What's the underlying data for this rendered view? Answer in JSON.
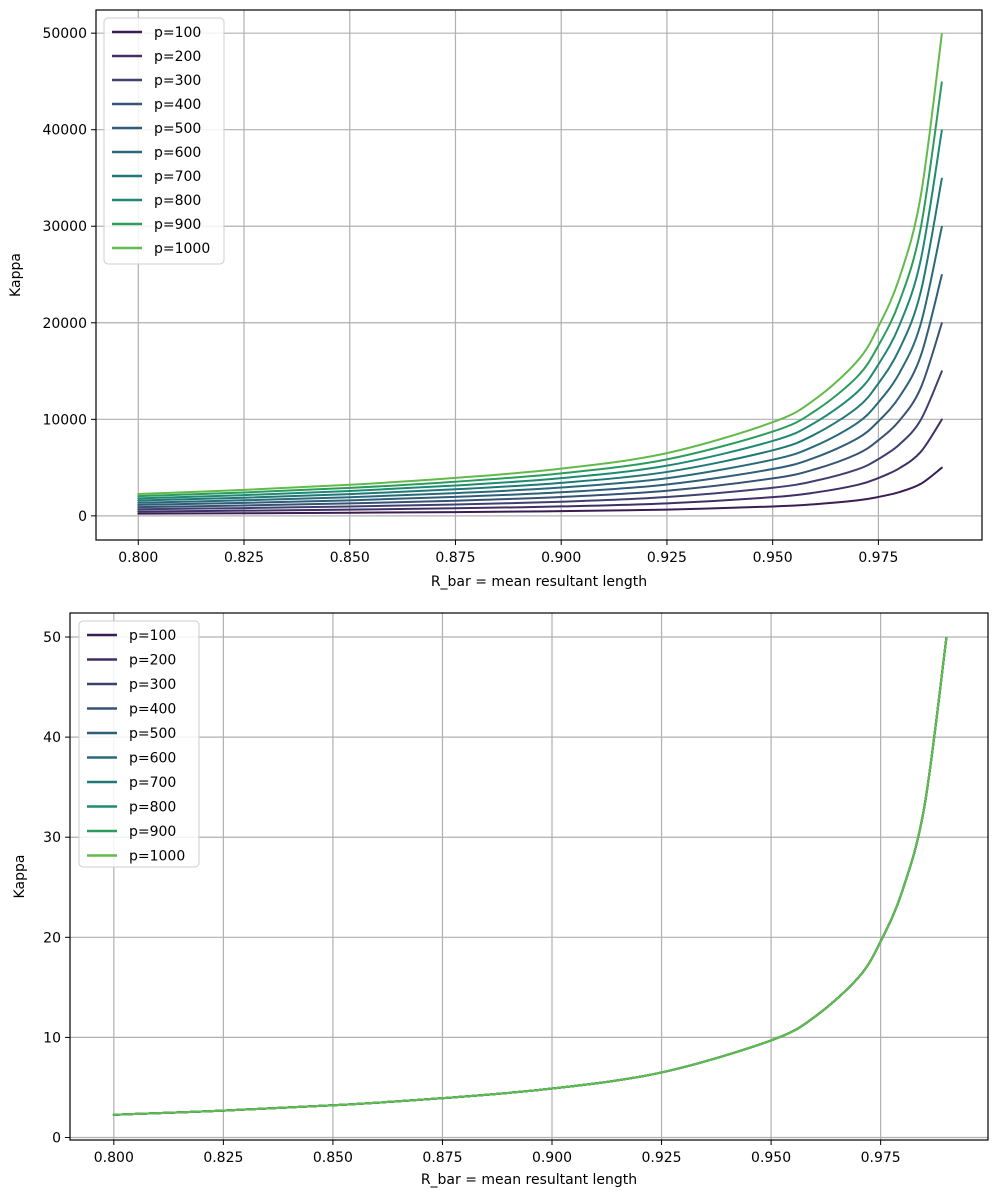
{
  "chart_data": [
    {
      "type": "line",
      "title": "",
      "xlabel": "R_bar = mean resultant length",
      "ylabel": "Kappa",
      "xlim": [
        0.79,
        0.9995
      ],
      "ylim": [
        -2500,
        52400
      ],
      "xticks": [
        0.8,
        0.825,
        0.85,
        0.875,
        0.9,
        0.925,
        0.95,
        0.975
      ],
      "xtick_labels": [
        "0.800",
        "0.825",
        "0.850",
        "0.875",
        "0.900",
        "0.925",
        "0.950",
        "0.975"
      ],
      "yticks": [
        0,
        10000,
        20000,
        30000,
        40000,
        50000
      ],
      "ytick_labels": [
        "0",
        "10000",
        "20000",
        "30000",
        "40000",
        "50000"
      ],
      "grid": true,
      "legend": "top-left",
      "x": [
        0.8,
        0.825,
        0.85,
        0.875,
        0.9,
        0.925,
        0.95,
        0.96,
        0.97,
        0.975,
        0.98,
        0.985,
        0.99
      ],
      "series": [
        {
          "name": "p=100",
          "color": "#3b1d53",
          "values": [
            227,
            269,
            322,
            393,
            489,
            650,
            970,
            1207,
            1602,
            1960,
            2470,
            3310,
            4990
          ]
        },
        {
          "name": "p=200",
          "color": "#3f2f66",
          "values": [
            454,
            538,
            644,
            786,
            978,
            1300,
            1940,
            2414,
            3204,
            3920,
            4940,
            6620,
            9980
          ]
        },
        {
          "name": "p=300",
          "color": "#3e406f",
          "values": [
            681,
            807,
            966,
            1179,
            1467,
            1950,
            2910,
            3621,
            4806,
            5880,
            7410,
            9930,
            14970
          ]
        },
        {
          "name": "p=400",
          "color": "#375275",
          "values": [
            908,
            1076,
            1288,
            1572,
            1956,
            2600,
            3880,
            4828,
            6408,
            7840,
            9880,
            13240,
            19960
          ]
        },
        {
          "name": "p=500",
          "color": "#2f5e78",
          "values": [
            1135,
            1345,
            1610,
            1965,
            2445,
            3250,
            4850,
            6035,
            8010,
            9800,
            12350,
            16550,
            24950
          ]
        },
        {
          "name": "p=600",
          "color": "#296a7a",
          "values": [
            1362,
            1614,
            1932,
            2358,
            2934,
            3900,
            5820,
            7242,
            9612,
            11760,
            14820,
            19860,
            29940
          ]
        },
        {
          "name": "p=700",
          "color": "#207877",
          "values": [
            1589,
            1883,
            2254,
            2751,
            3423,
            4550,
            6790,
            8449,
            11214,
            13720,
            17290,
            23170,
            34930
          ]
        },
        {
          "name": "p=800",
          "color": "#1f8a72",
          "values": [
            1816,
            2152,
            2576,
            3144,
            3912,
            5200,
            7760,
            9656,
            12816,
            15680,
            19760,
            26480,
            39920
          ]
        },
        {
          "name": "p=900",
          "color": "#2c9c5e",
          "values": [
            2043,
            2421,
            2898,
            3537,
            4401,
            5850,
            8730,
            10863,
            14418,
            17640,
            22230,
            29790,
            44910
          ]
        },
        {
          "name": "p=1000",
          "color": "#62ba4c",
          "values": [
            2270,
            2690,
            3220,
            3930,
            4890,
            6500,
            9700,
            12070,
            16020,
            19600,
            24700,
            33100,
            49900
          ]
        }
      ]
    },
    {
      "type": "line",
      "title": "",
      "xlabel": "R_bar = mean resultant length",
      "ylabel": "Kappa",
      "xlim": [
        0.79,
        0.9995
      ],
      "ylim": [
        -0.25,
        52.4
      ],
      "xticks": [
        0.8,
        0.825,
        0.85,
        0.875,
        0.9,
        0.925,
        0.95,
        0.975
      ],
      "xtick_labels": [
        "0.800",
        "0.825",
        "0.850",
        "0.875",
        "0.900",
        "0.925",
        "0.950",
        "0.975"
      ],
      "yticks": [
        0,
        10,
        20,
        30,
        40,
        50
      ],
      "ytick_labels": [
        "0",
        "10",
        "20",
        "30",
        "40",
        "50"
      ],
      "grid": true,
      "legend": "top-left",
      "x": [
        0.8,
        0.825,
        0.85,
        0.875,
        0.9,
        0.925,
        0.95,
        0.96,
        0.97,
        0.975,
        0.98,
        0.985,
        0.99
      ],
      "series": [
        {
          "name": "p=100",
          "color": "#3b1d53",
          "values": [
            2.27,
            2.69,
            3.22,
            3.93,
            4.89,
            6.5,
            9.7,
            12.07,
            16.02,
            19.6,
            24.7,
            33.1,
            49.9
          ]
        },
        {
          "name": "p=200",
          "color": "#3f2f66",
          "values": [
            2.27,
            2.69,
            3.22,
            3.93,
            4.89,
            6.5,
            9.7,
            12.07,
            16.02,
            19.6,
            24.7,
            33.1,
            49.9
          ]
        },
        {
          "name": "p=300",
          "color": "#3e406f",
          "values": [
            2.27,
            2.69,
            3.22,
            3.93,
            4.89,
            6.5,
            9.7,
            12.07,
            16.02,
            19.6,
            24.7,
            33.1,
            49.9
          ]
        },
        {
          "name": "p=400",
          "color": "#375275",
          "values": [
            2.27,
            2.69,
            3.22,
            3.93,
            4.89,
            6.5,
            9.7,
            12.07,
            16.02,
            19.6,
            24.7,
            33.1,
            49.9
          ]
        },
        {
          "name": "p=500",
          "color": "#2f5e78",
          "values": [
            2.27,
            2.69,
            3.22,
            3.93,
            4.89,
            6.5,
            9.7,
            12.07,
            16.02,
            19.6,
            24.7,
            33.1,
            49.9
          ]
        },
        {
          "name": "p=600",
          "color": "#296a7a",
          "values": [
            2.27,
            2.69,
            3.22,
            3.93,
            4.89,
            6.5,
            9.7,
            12.07,
            16.02,
            19.6,
            24.7,
            33.1,
            49.9
          ]
        },
        {
          "name": "p=700",
          "color": "#207877",
          "values": [
            2.27,
            2.69,
            3.22,
            3.93,
            4.89,
            6.5,
            9.7,
            12.07,
            16.02,
            19.6,
            24.7,
            33.1,
            49.9
          ]
        },
        {
          "name": "p=800",
          "color": "#1f8a72",
          "values": [
            2.27,
            2.69,
            3.22,
            3.93,
            4.89,
            6.5,
            9.7,
            12.07,
            16.02,
            19.6,
            24.7,
            33.1,
            49.9
          ]
        },
        {
          "name": "p=900",
          "color": "#2c9c5e",
          "values": [
            2.27,
            2.69,
            3.22,
            3.93,
            4.89,
            6.5,
            9.7,
            12.07,
            16.02,
            19.6,
            24.7,
            33.1,
            49.9
          ]
        },
        {
          "name": "p=1000",
          "color": "#62ba4c",
          "values": [
            2.27,
            2.69,
            3.22,
            3.93,
            4.89,
            6.5,
            9.7,
            12.07,
            16.02,
            19.6,
            24.7,
            33.1,
            49.9
          ]
        }
      ]
    }
  ]
}
